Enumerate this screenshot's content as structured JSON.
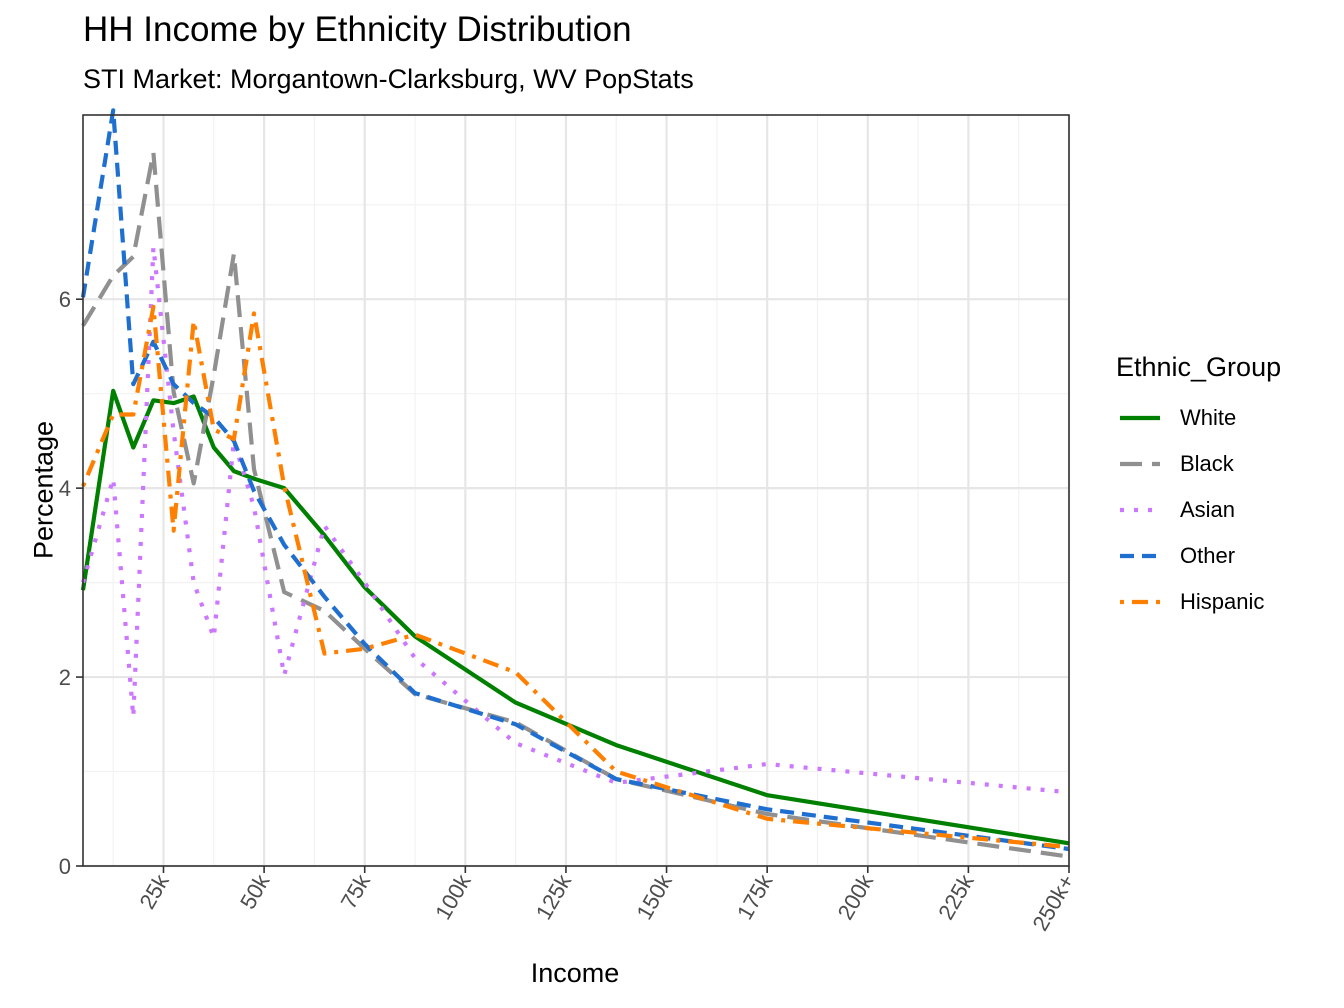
{
  "chart_data": {
    "type": "line",
    "title": "HH Income by Ethnicity Distribution",
    "subtitle": "STI Market: Morgantown-Clarksburg, WV PopStats",
    "xlabel": "Income",
    "ylabel": "Percentage",
    "xlim": [
      5,
      250
    ],
    "ylim": [
      0,
      7.95
    ],
    "xticks": [
      25,
      50,
      75,
      100,
      125,
      150,
      175,
      200,
      225,
      250
    ],
    "xtick_labels": [
      "25k",
      "50k",
      "75k",
      "100k",
      "125k",
      "150k",
      "175k",
      "200k",
      "225k",
      "250k+"
    ],
    "yticks": [
      0,
      2,
      4,
      6
    ],
    "ytick_labels": [
      "0",
      "2",
      "4",
      "6"
    ],
    "legend_title": "Ethnic_Group",
    "legend_position": "right",
    "x": [
      5,
      12.5,
      17.5,
      22.5,
      27.5,
      32.5,
      37.5,
      42.5,
      47.5,
      55,
      65,
      75,
      87.5,
      112.5,
      137.5,
      175,
      250
    ],
    "series": [
      {
        "name": "White",
        "color": "#008000",
        "dash": "solid",
        "values": [
          2.92,
          5.03,
          4.43,
          4.93,
          4.9,
          4.97,
          4.43,
          4.18,
          4.1,
          4.0,
          3.5,
          2.95,
          2.43,
          1.73,
          1.28,
          0.75,
          0.24
        ]
      },
      {
        "name": "Black",
        "color": "#909090",
        "dash": "longdash",
        "values": [
          5.72,
          6.25,
          6.45,
          7.55,
          5.02,
          4.05,
          5.2,
          6.48,
          4.2,
          2.9,
          2.7,
          2.3,
          1.82,
          1.52,
          0.92,
          0.55,
          0.1
        ]
      },
      {
        "name": "Asian",
        "color": "#CC77FF",
        "dash": "dotted",
        "values": [
          3.0,
          4.1,
          1.58,
          6.55,
          4.6,
          3.0,
          2.42,
          4.5,
          3.8,
          2.02,
          3.6,
          3.0,
          2.2,
          1.3,
          0.88,
          1.08,
          0.78
        ]
      },
      {
        "name": "Other",
        "color": "#1F6FD0",
        "dash": "dashed",
        "values": [
          6.02,
          8.0,
          5.1,
          5.55,
          5.1,
          4.9,
          4.75,
          4.5,
          3.97,
          3.4,
          2.85,
          2.35,
          1.83,
          1.5,
          0.92,
          0.6,
          0.18
        ]
      },
      {
        "name": "Hispanic",
        "color": "#FF8000",
        "dash": "dotdash",
        "values": [
          4.02,
          4.78,
          4.78,
          5.92,
          3.55,
          5.77,
          4.62,
          4.52,
          5.85,
          4.02,
          2.25,
          2.3,
          2.45,
          2.05,
          1.0,
          0.5,
          0.2
        ]
      }
    ]
  }
}
